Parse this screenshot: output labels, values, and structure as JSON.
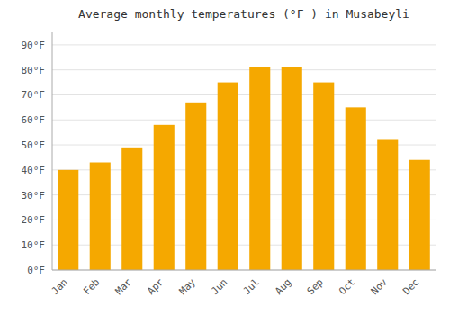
{
  "chart_data": {
    "type": "bar",
    "title": "Average monthly temperatures (°F ) in Musabeyli",
    "categories": [
      "Jan",
      "Feb",
      "Mar",
      "Apr",
      "May",
      "Jun",
      "Jul",
      "Aug",
      "Sep",
      "Oct",
      "Nov",
      "Dec"
    ],
    "values": [
      40,
      43,
      49,
      58,
      67,
      75,
      81,
      81,
      75,
      65,
      52,
      44
    ],
    "color": "#F5A800",
    "ylim": [
      0,
      95
    ],
    "yticks": [
      {
        "value": 0,
        "label": "0°F"
      },
      {
        "value": 10,
        "label": "10°F"
      },
      {
        "value": 20,
        "label": "20°F"
      },
      {
        "value": 30,
        "label": "30°F"
      },
      {
        "value": 40,
        "label": "40°F"
      },
      {
        "value": 50,
        "label": "50°F"
      },
      {
        "value": 60,
        "label": "60°F"
      },
      {
        "value": 70,
        "label": "70°F"
      },
      {
        "value": 80,
        "label": "80°F"
      },
      {
        "value": 90,
        "label": "90°F"
      }
    ],
    "grid": true
  }
}
